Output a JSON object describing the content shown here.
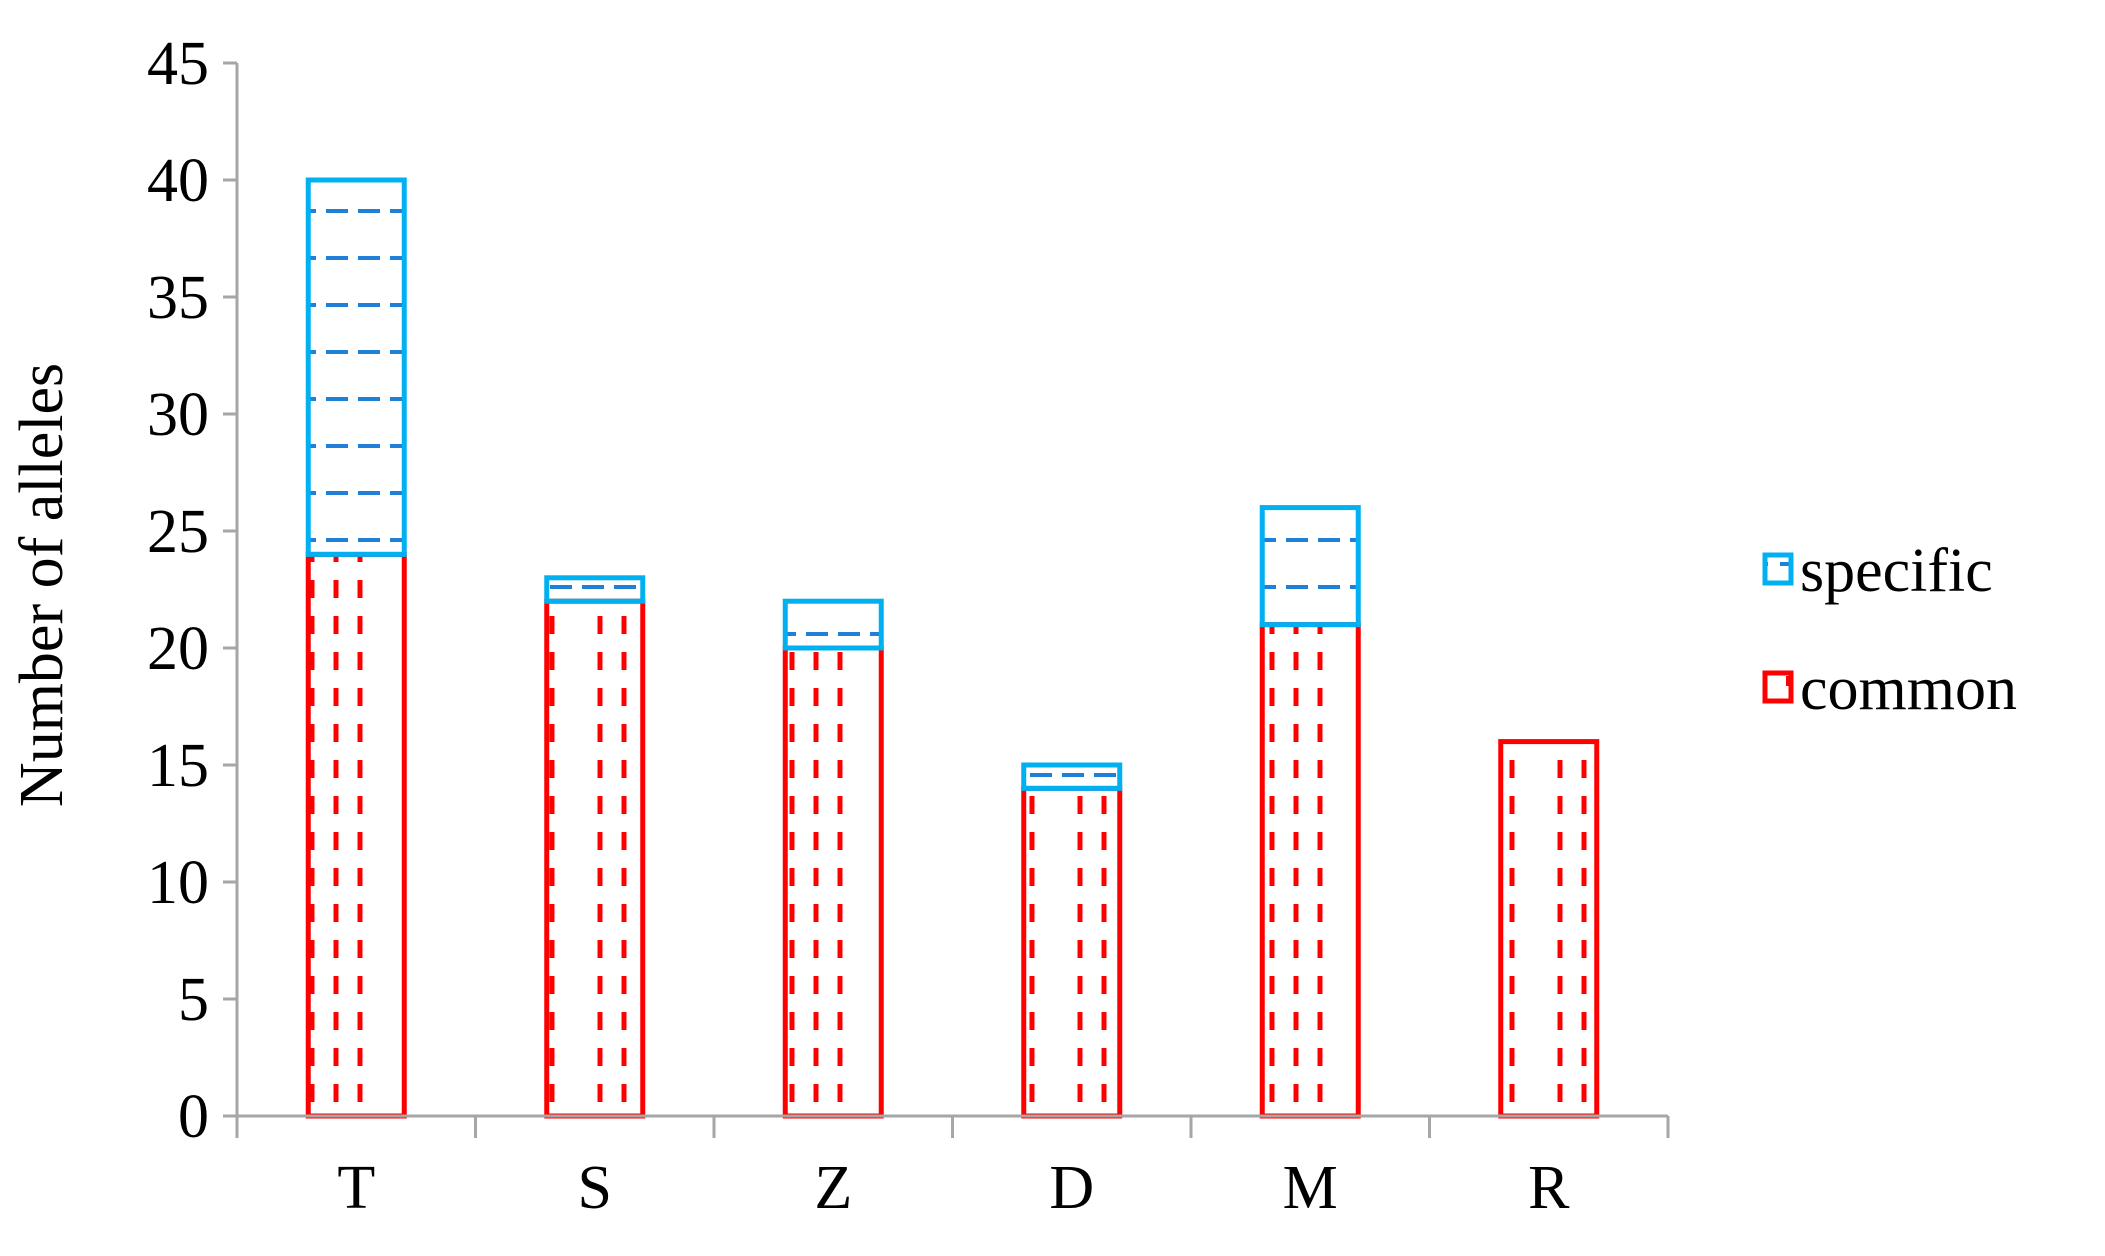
{
  "chart_data": {
    "type": "bar",
    "stacked": true,
    "title": "",
    "xlabel": "",
    "ylabel": "Number of alleles",
    "ylim": [
      0,
      45
    ],
    "y_ticks": [
      "0",
      "5",
      "10",
      "15",
      "20",
      "25",
      "30",
      "35",
      "40",
      "45"
    ],
    "y_tick_values": [
      0,
      5,
      10,
      15,
      20,
      25,
      30,
      35,
      40,
      45
    ],
    "categories": [
      "T",
      "S",
      "Z",
      "D",
      "M",
      "R"
    ],
    "series": [
      {
        "name": "common",
        "values": [
          24,
          22,
          20,
          14,
          21,
          16
        ],
        "color": "#ff0000",
        "pattern": "vertical-dashes"
      },
      {
        "name": "specific",
        "values": [
          16,
          1,
          2,
          1,
          5,
          0
        ],
        "color": "#00b0f0",
        "pattern": "horizontal-dashes"
      }
    ],
    "legend": {
      "placement": "right",
      "entries": [
        "specific",
        "common"
      ]
    },
    "grid": false
  }
}
